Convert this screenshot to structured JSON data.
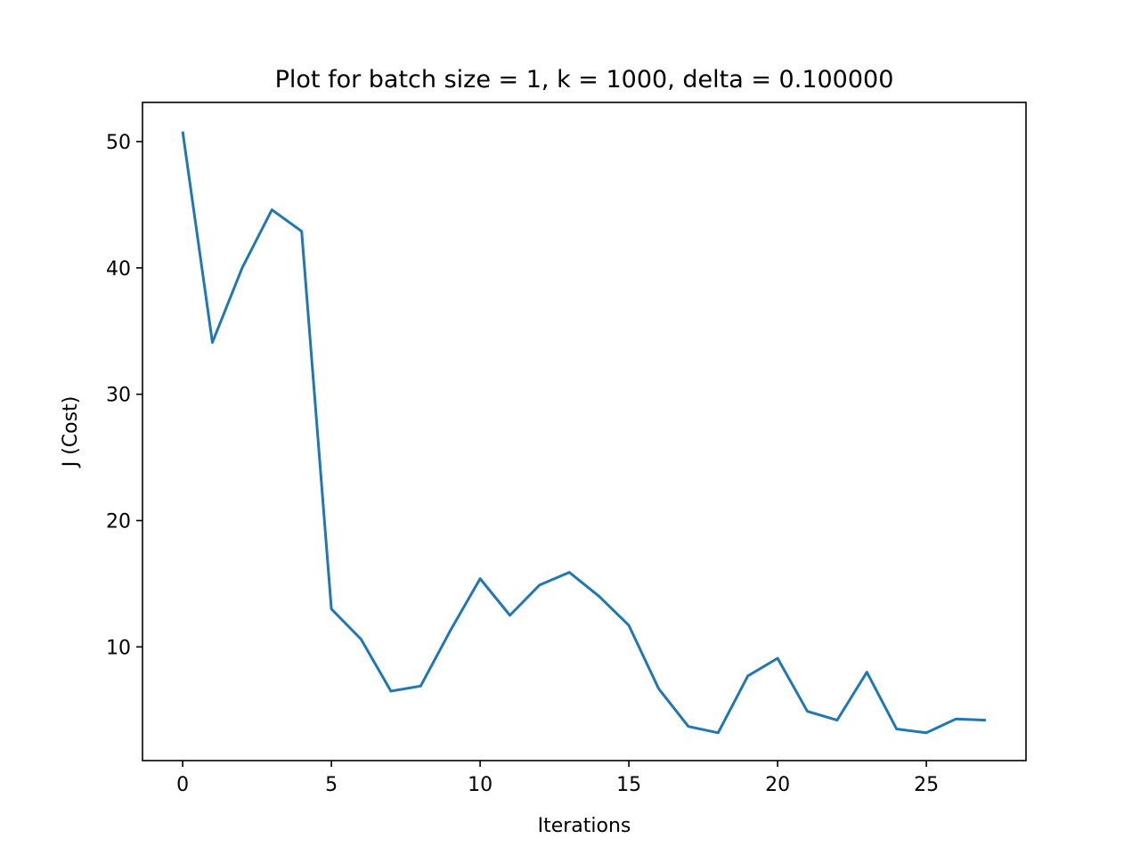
{
  "chart_data": {
    "type": "line",
    "title": "Plot for batch size = 1, k = 1000, delta = 0.100000",
    "xlabel": "Iterations",
    "ylabel": "J (Cost)",
    "xlim": [
      -1.35,
      28.35
    ],
    "ylim": [
      1.0,
      53.1
    ],
    "xticks": [
      0,
      5,
      10,
      15,
      20,
      25
    ],
    "yticks": [
      10,
      20,
      30,
      40,
      50
    ],
    "grid": false,
    "legend": "none",
    "series": [
      {
        "color": "#1f77b4",
        "x": [
          0,
          1,
          2,
          3,
          4,
          5,
          6,
          7,
          8,
          9,
          10,
          11,
          12,
          13,
          14,
          15,
          16,
          17,
          18,
          19,
          20,
          21,
          22,
          23,
          24,
          25,
          26,
          27
        ],
        "y": [
          50.8,
          34.1,
          40.0,
          44.6,
          42.9,
          13.0,
          10.6,
          6.5,
          6.9,
          11.3,
          15.4,
          12.5,
          14.9,
          15.9,
          14.0,
          11.7,
          6.7,
          3.7,
          3.2,
          7.7,
          9.1,
          4.9,
          4.2,
          8.0,
          3.5,
          3.2,
          4.3,
          4.2
        ]
      }
    ]
  }
}
